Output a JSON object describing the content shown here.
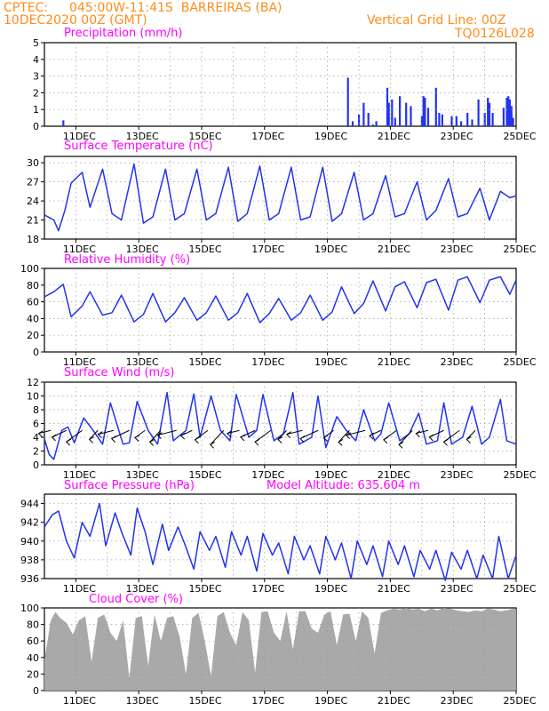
{
  "header": {
    "source": "CPTEC:",
    "location_line": "045:00W-11:41S  BARREIRAS (BA)",
    "init_time": "10DEC2020 00Z (GMT)",
    "grid_note": "Vertical Grid Line: 00Z",
    "model": "TQ0126L028"
  },
  "colors": {
    "header": "#ff8c1a",
    "title": "#ff00ff",
    "series": "#2233ee",
    "bars": "#2233ee",
    "cloud": "#a9a9a9",
    "grid": "#999999"
  },
  "chart_data": [
    {
      "id": "precip",
      "type": "bar",
      "title": "Precipitation (mm/h)",
      "ylim": [
        0,
        5
      ],
      "yticks": [
        0,
        1,
        2,
        3,
        4,
        5
      ],
      "xlim_days": [
        10,
        25
      ],
      "xtick_labels": [
        "11DEC",
        "13DEC",
        "15DEC",
        "17DEC",
        "19DEC",
        "21DEC",
        "23DEC",
        "25DEC"
      ],
      "grid": true,
      "x": [
        10.6,
        19.65,
        19.8,
        20.0,
        20.15,
        20.3,
        20.45,
        20.55,
        20.9,
        20.95,
        21.05,
        21.15,
        21.3,
        21.5,
        21.65,
        22.0,
        22.05,
        22.1,
        22.2,
        22.45,
        22.55,
        22.65,
        22.95,
        23.1,
        23.25,
        23.45,
        23.6,
        23.8,
        24.0,
        24.1,
        24.15,
        24.25,
        24.6,
        24.7,
        24.75,
        24.8,
        24.85,
        24.9
      ],
      "values": [
        0.35,
        2.9,
        0.3,
        0.7,
        1.4,
        0.8,
        0.1,
        0.3,
        2.3,
        1.4,
        1.6,
        0.5,
        1.8,
        1.4,
        1.2,
        0.6,
        1.8,
        1.7,
        1.1,
        2.3,
        0.8,
        0.7,
        0.6,
        0.6,
        0.3,
        0.8,
        0.4,
        1.6,
        0.8,
        1.7,
        1.4,
        0.8,
        1.1,
        1.7,
        1.8,
        1.6,
        1.2,
        0.5
      ]
    },
    {
      "id": "temperature",
      "type": "line",
      "title": "Surface Temperature (nC)",
      "ylim": [
        18,
        31
      ],
      "yticks": [
        18,
        21,
        24,
        27,
        30
      ],
      "xlim_days": [
        10,
        25
      ],
      "xtick_labels": [
        "11DEC",
        "13DEC",
        "15DEC",
        "17DEC",
        "19DEC",
        "21DEC",
        "23DEC",
        "25DEC"
      ],
      "grid": true,
      "x": [
        10.0,
        10.3,
        10.45,
        10.65,
        10.85,
        11.2,
        11.45,
        11.85,
        12.15,
        12.45,
        12.85,
        13.15,
        13.45,
        13.85,
        14.15,
        14.45,
        14.85,
        15.15,
        15.45,
        15.85,
        16.15,
        16.45,
        16.85,
        17.15,
        17.45,
        17.85,
        18.15,
        18.45,
        18.85,
        19.15,
        19.45,
        19.85,
        20.15,
        20.45,
        20.85,
        21.15,
        21.45,
        21.85,
        22.15,
        22.45,
        22.85,
        23.15,
        23.45,
        23.85,
        24.15,
        24.5,
        24.8,
        25.0
      ],
      "values": [
        21.8,
        21.0,
        19.3,
        22.5,
        26.8,
        28.5,
        23.0,
        29.0,
        22.0,
        21.0,
        29.8,
        20.5,
        21.5,
        29.0,
        21.0,
        22.0,
        29.0,
        21.0,
        22.0,
        29.3,
        20.8,
        22.0,
        29.5,
        21.0,
        22.0,
        29.3,
        21.0,
        21.5,
        29.3,
        20.8,
        22.0,
        28.5,
        21.0,
        22.0,
        28.0,
        21.5,
        22.0,
        27.0,
        21.0,
        22.5,
        27.5,
        21.5,
        22.0,
        26.0,
        21.0,
        25.5,
        24.5,
        24.8
      ]
    },
    {
      "id": "humidity",
      "type": "line",
      "title": "Relative Humidity (%)",
      "ylim": [
        0,
        100
      ],
      "yticks": [
        0,
        20,
        40,
        60,
        80,
        100
      ],
      "xlim_days": [
        10,
        25
      ],
      "xtick_labels": [
        "11DEC",
        "13DEC",
        "15DEC",
        "17DEC",
        "19DEC",
        "21DEC",
        "23DEC",
        "25DEC"
      ],
      "grid": true,
      "x": [
        10.0,
        10.3,
        10.6,
        10.85,
        11.2,
        11.45,
        11.85,
        12.15,
        12.45,
        12.85,
        13.15,
        13.45,
        13.85,
        14.15,
        14.45,
        14.85,
        15.15,
        15.45,
        15.85,
        16.15,
        16.45,
        16.85,
        17.15,
        17.45,
        17.85,
        18.15,
        18.45,
        18.85,
        19.15,
        19.45,
        19.85,
        20.15,
        20.45,
        20.85,
        21.15,
        21.45,
        21.85,
        22.15,
        22.45,
        22.85,
        23.15,
        23.45,
        23.85,
        24.15,
        24.5,
        24.8,
        25.0
      ],
      "values": [
        66,
        72,
        81,
        42,
        55,
        72,
        44,
        47,
        68,
        36,
        45,
        70,
        36,
        47,
        65,
        38,
        47,
        67,
        38,
        47,
        70,
        35,
        46,
        64,
        38,
        47,
        68,
        38,
        48,
        78,
        46,
        58,
        85,
        49,
        78,
        84,
        53,
        83,
        87,
        50,
        86,
        90,
        59,
        86,
        90,
        69,
        86
      ]
    },
    {
      "id": "wind",
      "type": "line",
      "title": "Surface Wind (m/s)",
      "ylim": [
        0,
        12
      ],
      "yticks": [
        0,
        2,
        4,
        6,
        8,
        10,
        12
      ],
      "xlim_days": [
        10,
        25
      ],
      "xtick_labels": [
        "11DEC",
        "13DEC",
        "15DEC",
        "17DEC",
        "19DEC",
        "21DEC",
        "23DEC",
        "25DEC"
      ],
      "grid": true,
      "x": [
        10.0,
        10.15,
        10.3,
        10.55,
        10.75,
        10.95,
        11.25,
        11.55,
        11.85,
        12.1,
        12.5,
        12.7,
        12.95,
        13.3,
        13.6,
        13.9,
        14.1,
        14.5,
        14.75,
        14.95,
        15.3,
        15.6,
        15.9,
        16.1,
        16.5,
        16.75,
        16.95,
        17.3,
        17.6,
        17.9,
        18.1,
        18.5,
        18.7,
        18.95,
        19.3,
        19.6,
        19.9,
        20.15,
        20.5,
        20.7,
        20.95,
        21.3,
        21.6,
        21.9,
        22.15,
        22.5,
        22.7,
        22.95,
        23.3,
        23.6,
        23.9,
        24.15,
        24.5,
        24.7,
        25.0
      ],
      "values": [
        3.8,
        1.5,
        0.8,
        5.0,
        5.5,
        3.2,
        6.8,
        5.0,
        3.0,
        9.0,
        3.0,
        3.2,
        9.2,
        5.0,
        3.0,
        10.5,
        3.5,
        5.0,
        10.3,
        4.0,
        10.0,
        5.0,
        3.5,
        10.2,
        4.0,
        5.0,
        10.2,
        3.5,
        4.5,
        10.5,
        3.0,
        4.0,
        10.0,
        2.5,
        7.0,
        5.0,
        3.5,
        8.0,
        3.5,
        4.5,
        9.0,
        3.5,
        4.5,
        7.5,
        3.0,
        3.5,
        9.0,
        3.0,
        4.0,
        8.5,
        3.0,
        4.0,
        9.5,
        3.5,
        3.0
      ],
      "vector_hours": "every 6 h"
    },
    {
      "id": "pressure",
      "type": "line",
      "title": "Surface Pressure (hPa)",
      "annotation": "Model Altitude: 635.604 m",
      "ylim": [
        936,
        945
      ],
      "yticks": [
        936,
        938,
        940,
        942,
        944
      ],
      "xlim_days": [
        10,
        25
      ],
      "xtick_labels": [
        "11DEC",
        "13DEC",
        "15DEC",
        "17DEC",
        "19DEC",
        "21DEC",
        "23DEC",
        "25DEC"
      ],
      "grid": true,
      "x": [
        10.0,
        10.25,
        10.45,
        10.7,
        10.95,
        11.2,
        11.45,
        11.75,
        11.95,
        12.25,
        12.45,
        12.75,
        12.95,
        13.2,
        13.45,
        13.75,
        13.95,
        14.25,
        14.45,
        14.75,
        14.95,
        15.25,
        15.45,
        15.75,
        15.95,
        16.25,
        16.45,
        16.75,
        16.95,
        17.25,
        17.45,
        17.75,
        17.95,
        18.25,
        18.45,
        18.75,
        18.95,
        19.25,
        19.45,
        19.75,
        19.95,
        20.25,
        20.45,
        20.75,
        20.95,
        21.25,
        21.45,
        21.75,
        21.95,
        22.25,
        22.45,
        22.75,
        22.95,
        23.25,
        23.45,
        23.75,
        23.95,
        24.25,
        24.45,
        24.75,
        25.0
      ],
      "values": [
        941.5,
        942.8,
        943.2,
        940.0,
        938.2,
        942.0,
        940.5,
        944.0,
        939.5,
        943.0,
        941.0,
        938.5,
        943.5,
        941.0,
        937.5,
        941.8,
        939.0,
        941.5,
        939.8,
        937.0,
        941.0,
        939.0,
        940.5,
        937.2,
        941.0,
        938.5,
        940.5,
        936.8,
        940.8,
        938.5,
        939.8,
        936.5,
        940.5,
        938.0,
        939.5,
        936.5,
        940.5,
        938.0,
        939.8,
        936.0,
        940.0,
        937.5,
        939.5,
        936.2,
        940.0,
        937.5,
        939.5,
        936.2,
        939.0,
        937.0,
        939.0,
        935.8,
        938.8,
        937.0,
        939.0,
        936.0,
        938.5,
        936.0,
        940.5,
        936.0,
        938.5
      ]
    },
    {
      "id": "cloud",
      "type": "area",
      "title": "Cloud Cover (%)",
      "ylim": [
        0,
        100
      ],
      "yticks": [
        0,
        20,
        40,
        60,
        80,
        100
      ],
      "xlim_days": [
        10,
        25
      ],
      "xtick_labels": [
        "11DEC",
        "13DEC",
        "15DEC",
        "17DEC",
        "19DEC",
        "21DEC",
        "23DEC",
        "25DEC"
      ],
      "grid": true,
      "x": [
        10.0,
        10.1,
        10.2,
        10.35,
        10.5,
        10.7,
        10.9,
        11.1,
        11.3,
        11.5,
        11.7,
        11.9,
        12.1,
        12.3,
        12.5,
        12.7,
        12.9,
        13.1,
        13.3,
        13.5,
        13.7,
        13.9,
        14.1,
        14.3,
        14.5,
        14.7,
        14.9,
        15.1,
        15.3,
        15.5,
        15.7,
        15.9,
        16.1,
        16.3,
        16.5,
        16.7,
        16.9,
        17.1,
        17.3,
        17.5,
        17.7,
        17.9,
        18.1,
        18.3,
        18.5,
        18.7,
        18.9,
        19.1,
        19.3,
        19.5,
        19.7,
        19.9,
        20.1,
        20.3,
        20.5,
        20.7,
        20.9,
        21.1,
        21.3,
        21.5,
        21.7,
        21.9,
        22.1,
        22.3,
        22.5,
        22.7,
        22.9,
        23.1,
        23.3,
        23.5,
        23.7,
        23.9,
        24.1,
        24.3,
        24.5,
        24.7,
        24.9,
        25.0
      ],
      "values": [
        38,
        60,
        85,
        95,
        88,
        82,
        68,
        85,
        90,
        35,
        88,
        92,
        70,
        60,
        85,
        15,
        88,
        90,
        30,
        92,
        60,
        88,
        90,
        65,
        20,
        88,
        94,
        60,
        18,
        90,
        95,
        70,
        55,
        95,
        85,
        22,
        95,
        96,
        70,
        60,
        96,
        50,
        96,
        96,
        75,
        70,
        92,
        96,
        55,
        92,
        93,
        60,
        96,
        88,
        45,
        94,
        97,
        99,
        98,
        100,
        98,
        99,
        96,
        99,
        97,
        100,
        99,
        97,
        96,
        95,
        97,
        96,
        99,
        98,
        96,
        97,
        99,
        98
      ]
    }
  ]
}
